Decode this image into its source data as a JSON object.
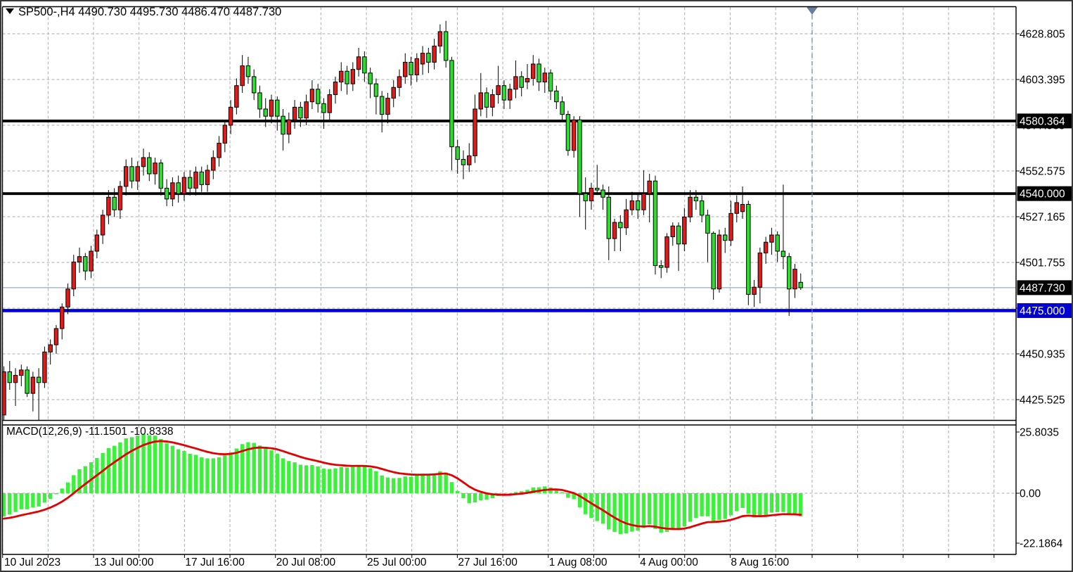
{
  "window": {
    "title_text": "SP500-,H4  4490.730 4495.730 4486.470 4487.730",
    "symbol": "SP500-",
    "timeframe": "H4",
    "dropdown_icon": "down-triangle",
    "marker_icon": "current-bar-marker"
  },
  "colors": {
    "background": "#ffffff",
    "bull_candle": "#e11a1a",
    "bear_candle": "#2ddd2d",
    "candle_outline": "#000000",
    "grid": "#a6adb6",
    "level_black": "#000000",
    "level_blue": "#0101df",
    "current_price_line": "#8296a6",
    "macd_histogram": "#3cf03c",
    "macd_signal": "#e40000",
    "badge_black_bg": "#000000",
    "badge_blue_bg": "#0101d4",
    "marker": "#64809c",
    "border": "#000000",
    "frame": "#3a3a3a"
  },
  "price_axis": {
    "ticks": [
      {
        "label": "4628.805",
        "price": 4628.805
      },
      {
        "label": "4603.395",
        "price": 4603.395
      },
      {
        "label": "4577.985",
        "price": 4577.985
      },
      {
        "label": "4552.575",
        "price": 4552.575
      },
      {
        "label": "4527.165",
        "price": 4527.165
      },
      {
        "label": "4501.755",
        "price": 4501.755
      },
      {
        "label": "4476.345",
        "price": 4476.345
      },
      {
        "label": "4450.935",
        "price": 4450.935
      },
      {
        "label": "4425.525",
        "price": 4425.525
      }
    ],
    "badges": [
      {
        "label": "4580.364",
        "price": 4580.364,
        "type": "black"
      },
      {
        "label": "4540.000",
        "price": 4540.0,
        "type": "black"
      },
      {
        "label": "4487.730",
        "price": 4487.73,
        "type": "black"
      },
      {
        "label": "4475.000",
        "price": 4475.0,
        "type": "blue"
      }
    ]
  },
  "time_axis": {
    "labels": [
      "10 Jul 2023",
      "13 Jul 00:00",
      "17 Jul 16:00",
      "20 Jul 08:00",
      "25 Jul 00:00",
      "27 Jul 16:00",
      "1 Aug 08:00",
      "4 Aug 00:00",
      "8 Aug 16:00"
    ]
  },
  "macd_panel": {
    "label": "MACD(12,26,9) -11.1501 -10.8338",
    "indicator_name": "MACD",
    "params": [
      12,
      26,
      9
    ],
    "main_value": "-11.1501",
    "signal_value": "-10.8338",
    "axis": {
      "max_label": "25.8035",
      "zero_label": "0.00",
      "min_label": "-22.1864",
      "max": 25.8035,
      "min": -22.1864
    }
  },
  "chart_data": {
    "type": "candlestick",
    "symbol": "SP500",
    "timeframe": "H4",
    "last_bar": {
      "open": 4490.73,
      "high": 4495.73,
      "low": 4486.47,
      "close": 4487.73
    },
    "current_price": 4487.73,
    "y_axis_range": [
      4410.0,
      4648.0
    ],
    "grid": true,
    "levels": [
      {
        "price": 4580.364,
        "style": "solid",
        "color": "black"
      },
      {
        "price": 4540.0,
        "style": "solid",
        "color": "black"
      },
      {
        "price": 4475.0,
        "style": "solid",
        "color": "blue"
      },
      {
        "price": 4487.73,
        "style": "thin",
        "color": "gray"
      }
    ],
    "bull_color_is_red": true,
    "candles_ohlc": [
      [
        4417,
        4444,
        4413,
        4441
      ],
      [
        4441,
        4447,
        4431,
        4435
      ],
      [
        4435,
        4443,
        4422,
        4439
      ],
      [
        4439,
        4445,
        4433,
        4442
      ],
      [
        4442,
        4444,
        4427,
        4429
      ],
      [
        4429,
        4441,
        4419,
        4438
      ],
      [
        4438,
        4443,
        4413,
        4435
      ],
      [
        4435,
        4455,
        4432,
        4452
      ],
      [
        4452,
        4459,
        4445,
        4456
      ],
      [
        4456,
        4467,
        4451,
        4465
      ],
      [
        4465,
        4479,
        4459,
        4477
      ],
      [
        4477,
        4490,
        4473,
        4487
      ],
      [
        4487,
        4506,
        4483,
        4502
      ],
      [
        4502,
        4510,
        4496,
        4505
      ],
      [
        4505,
        4507,
        4492,
        4497
      ],
      [
        4497,
        4511,
        4493,
        4508
      ],
      [
        4508,
        4520,
        4504,
        4517
      ],
      [
        4517,
        4531,
        4512,
        4528
      ],
      [
        4528,
        4542,
        4523,
        4538
      ],
      [
        4538,
        4543,
        4527,
        4531
      ],
      [
        4531,
        4547,
        4526,
        4544
      ],
      [
        4544,
        4559,
        4539,
        4555
      ],
      [
        4555,
        4560,
        4543,
        4547
      ],
      [
        4547,
        4558,
        4542,
        4555
      ],
      [
        4555,
        4565,
        4550,
        4560
      ],
      [
        4560,
        4563,
        4547,
        4551
      ],
      [
        4551,
        4560,
        4545,
        4557
      ],
      [
        4557,
        4559,
        4539,
        4543
      ],
      [
        4543,
        4548,
        4533,
        4537
      ],
      [
        4537,
        4549,
        4533,
        4546
      ],
      [
        4546,
        4550,
        4535,
        4540
      ],
      [
        4540,
        4552,
        4536,
        4549
      ],
      [
        4549,
        4553,
        4539,
        4543
      ],
      [
        4543,
        4555,
        4539,
        4552
      ],
      [
        4552,
        4555,
        4541,
        4545
      ],
      [
        4545,
        4556,
        4541,
        4553
      ],
      [
        4553,
        4564,
        4548,
        4560
      ],
      [
        4560,
        4572,
        4555,
        4568
      ],
      [
        4568,
        4581,
        4563,
        4578
      ],
      [
        4578,
        4592,
        4573,
        4588
      ],
      [
        4588,
        4604,
        4584,
        4600
      ],
      [
        4600,
        4617,
        4596,
        4611
      ],
      [
        4611,
        4616,
        4601,
        4605
      ],
      [
        4605,
        4609,
        4592,
        4596
      ],
      [
        4596,
        4600,
        4582,
        4587
      ],
      [
        4587,
        4593,
        4577,
        4583
      ],
      [
        4583,
        4595,
        4579,
        4592
      ],
      [
        4592,
        4594,
        4575,
        4583
      ],
      [
        4583,
        4587,
        4564,
        4573
      ],
      [
        4573,
        4585,
        4568,
        4581
      ],
      [
        4581,
        4592,
        4576,
        4588
      ],
      [
        4588,
        4591,
        4577,
        4582
      ],
      [
        4582,
        4595,
        4578,
        4591
      ],
      [
        4591,
        4603,
        4587,
        4598
      ],
      [
        4598,
        4601,
        4585,
        4590
      ],
      [
        4590,
        4593,
        4576,
        4585
      ],
      [
        4585,
        4598,
        4581,
        4595
      ],
      [
        4595,
        4605,
        4590,
        4602
      ],
      [
        4602,
        4613,
        4597,
        4608
      ],
      [
        4608,
        4611,
        4595,
        4601
      ],
      [
        4601,
        4613,
        4597,
        4609
      ],
      [
        4609,
        4621,
        4605,
        4616
      ],
      [
        4616,
        4619,
        4602,
        4607
      ],
      [
        4607,
        4610,
        4593,
        4601
      ],
      [
        4601,
        4604,
        4584,
        4594
      ],
      [
        4594,
        4597,
        4574,
        4584
      ],
      [
        4584,
        4596,
        4579,
        4593
      ],
      [
        4593,
        4603,
        4588,
        4599
      ],
      [
        4599,
        4609,
        4594,
        4605
      ],
      [
        4605,
        4618,
        4601,
        4613
      ],
      [
        4613,
        4616,
        4600,
        4606
      ],
      [
        4606,
        4618,
        4602,
        4615
      ],
      [
        4612,
        4622,
        4606,
        4618
      ],
      [
        4618,
        4621,
        4607,
        4613
      ],
      [
        4613,
        4626,
        4609,
        4622
      ],
      [
        4622,
        4634,
        4618,
        4630
      ],
      [
        4630,
        4636,
        4610,
        4614
      ],
      [
        4614,
        4616,
        4553,
        4566
      ],
      [
        4566,
        4570,
        4551,
        4559
      ],
      [
        4559,
        4564,
        4548,
        4556
      ],
      [
        4556,
        4568,
        4552,
        4561
      ],
      [
        4561,
        4595,
        4557,
        4587
      ],
      [
        4587,
        4607,
        4583,
        4596
      ],
      [
        4596,
        4599,
        4582,
        4588
      ],
      [
        4588,
        4598,
        4583,
        4595
      ],
      [
        4595,
        4611,
        4590,
        4600
      ],
      [
        4600,
        4603,
        4587,
        4592
      ],
      [
        4592,
        4601,
        4587,
        4598
      ],
      [
        4598,
        4614,
        4593,
        4605
      ],
      [
        4605,
        4608,
        4594,
        4599
      ],
      [
        4602,
        4612,
        4598,
        4604
      ],
      [
        4604,
        4617,
        4600,
        4612
      ],
      [
        4612,
        4615,
        4597,
        4602
      ],
      [
        4602,
        4610,
        4596,
        4607
      ],
      [
        4607,
        4609,
        4592,
        4597
      ],
      [
        4597,
        4600,
        4587,
        4591
      ],
      [
        4591,
        4594,
        4581,
        4584
      ],
      [
        4584,
        4586,
        4561,
        4564
      ],
      [
        4564,
        4583,
        4560,
        4581
      ],
      [
        4581,
        4583,
        4527,
        4540
      ],
      [
        4540,
        4549,
        4520,
        4536
      ],
      [
        4536,
        4546,
        4531,
        4543
      ],
      [
        4543,
        4556,
        4540,
        4542
      ],
      [
        4542,
        4545,
        4531,
        4538
      ],
      [
        4538,
        4544,
        4503,
        4515
      ],
      [
        4515,
        4526,
        4508,
        4524
      ],
      [
        4524,
        4528,
        4508,
        4521
      ],
      [
        4521,
        4537,
        4517,
        4531
      ],
      [
        4531,
        4541,
        4528,
        4536
      ],
      [
        4536,
        4540,
        4526,
        4531
      ],
      [
        4531,
        4553,
        4528,
        4540
      ],
      [
        4540,
        4551,
        4524,
        4547
      ],
      [
        4547,
        4550,
        4495,
        4500
      ],
      [
        4500,
        4503,
        4493,
        4499
      ],
      [
        4499,
        4518,
        4496,
        4516
      ],
      [
        4516,
        4524,
        4511,
        4522
      ],
      [
        4522,
        4524,
        4497,
        4512
      ],
      [
        4512,
        4532,
        4508,
        4527
      ],
      [
        4527,
        4542,
        4524,
        4538
      ],
      [
        4538,
        4542,
        4531,
        4536
      ],
      [
        4536,
        4539,
        4524,
        4528
      ],
      [
        4528,
        4531,
        4502,
        4518
      ],
      [
        4518,
        4519,
        4481,
        4487
      ],
      [
        4487,
        4520,
        4485,
        4517
      ],
      [
        4517,
        4521,
        4507,
        4514
      ],
      [
        4514,
        4536,
        4511,
        4529
      ],
      [
        4529,
        4539,
        4524,
        4535
      ],
      [
        4530,
        4544,
        4526,
        4534
      ],
      [
        4534,
        4536,
        4478,
        4484
      ],
      [
        4484,
        4492,
        4477,
        4488
      ],
      [
        4488,
        4510,
        4479,
        4507
      ],
      [
        4507,
        4516,
        4501,
        4513
      ],
      [
        4513,
        4521,
        4506,
        4517
      ],
      [
        4517,
        4519,
        4502,
        4508
      ],
      [
        4508,
        4545,
        4498,
        4505
      ],
      [
        4505,
        4507,
        4472,
        4487
      ],
      [
        4487,
        4501,
        4482,
        4498
      ],
      [
        4490.7,
        4495.7,
        4486.5,
        4487.7
      ]
    ],
    "indicator": {
      "name": "MACD",
      "params": [
        12,
        26,
        9
      ],
      "histogram": "macd main line (computed from closes, EMA12-EMA26)",
      "signal": "EMA9 of main line",
      "last_main": -11.1501,
      "last_signal": -10.8338
    }
  }
}
